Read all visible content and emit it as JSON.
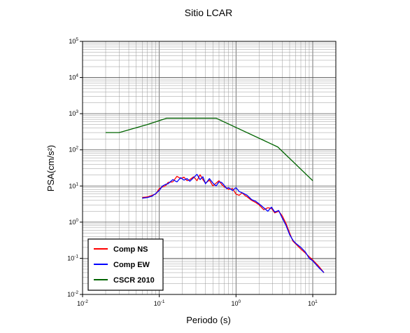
{
  "chart_data": {
    "type": "line",
    "title": "Sitio LCAR",
    "xlabel": "Periodo (s)",
    "ylabel": "PSA(cm/s²)",
    "xscale": "log",
    "yscale": "log",
    "xlim": [
      0.01,
      20
    ],
    "ylim": [
      0.01,
      100000
    ],
    "x_tick_labels": [
      {
        "base": "10",
        "exp": "-2"
      },
      {
        "base": "10",
        "exp": "-1"
      },
      {
        "base": "10",
        "exp": "0"
      },
      {
        "base": "10",
        "exp": "1"
      }
    ],
    "y_tick_labels": [
      {
        "base": "10",
        "exp": "-2"
      },
      {
        "base": "10",
        "exp": "-1"
      },
      {
        "base": "10",
        "exp": "0"
      },
      {
        "base": "10",
        "exp": "1"
      },
      {
        "base": "10",
        "exp": "2"
      },
      {
        "base": "10",
        "exp": "3"
      },
      {
        "base": "10",
        "exp": "4"
      },
      {
        "base": "10",
        "exp": "5"
      }
    ],
    "grid": true,
    "legend_position": "bottom-left",
    "series": [
      {
        "name": "Comp NS",
        "color": "#ff0000",
        "x": [
          0.06,
          0.07,
          0.08,
          0.09,
          0.1,
          0.11,
          0.12,
          0.13,
          0.15,
          0.17,
          0.19,
          0.21,
          0.23,
          0.25,
          0.28,
          0.31,
          0.34,
          0.37,
          0.4,
          0.45,
          0.5,
          0.55,
          0.6,
          0.65,
          0.7,
          0.75,
          0.8,
          0.9,
          1.0,
          1.1,
          1.2,
          1.3,
          1.4,
          1.6,
          1.8,
          2.0,
          2.3,
          2.6,
          2.9,
          3.2,
          3.6,
          4.0,
          4.5,
          5.0,
          5.5,
          6.0,
          7.0,
          8.0,
          9.0,
          10.0,
          12.0,
          14.0
        ],
        "y": [
          4.8,
          5.0,
          5.5,
          6.0,
          8.5,
          9.5,
          10.0,
          12.5,
          13.0,
          18.5,
          16.0,
          17.5,
          14.0,
          15.0,
          18.0,
          14.0,
          20.5,
          15.0,
          12.0,
          14.5,
          10.0,
          12.0,
          14.0,
          11.0,
          9.5,
          9.0,
          8.0,
          8.5,
          6.0,
          5.5,
          6.5,
          5.5,
          5.0,
          4.0,
          3.5,
          3.0,
          2.2,
          2.5,
          2.4,
          1.8,
          2.0,
          1.5,
          0.9,
          0.5,
          0.3,
          0.25,
          0.18,
          0.14,
          0.11,
          0.09,
          0.06,
          0.04
        ]
      },
      {
        "name": "Comp EW",
        "color": "#0000ff",
        "x": [
          0.06,
          0.07,
          0.08,
          0.09,
          0.1,
          0.11,
          0.12,
          0.13,
          0.15,
          0.17,
          0.19,
          0.21,
          0.23,
          0.25,
          0.28,
          0.31,
          0.34,
          0.37,
          0.4,
          0.45,
          0.5,
          0.55,
          0.6,
          0.65,
          0.7,
          0.75,
          0.8,
          0.9,
          1.0,
          1.1,
          1.2,
          1.3,
          1.4,
          1.6,
          1.8,
          2.0,
          2.3,
          2.6,
          2.9,
          3.2,
          3.6,
          4.0,
          4.5,
          5.0,
          5.5,
          6.0,
          7.0,
          8.0,
          9.0,
          10.0,
          12.0,
          14.0
        ],
        "y": [
          4.6,
          4.8,
          5.2,
          6.2,
          7.5,
          10.0,
          11.0,
          11.5,
          15.0,
          13.0,
          17.0,
          14.5,
          16.0,
          13.5,
          17.0,
          21.0,
          15.0,
          18.0,
          11.5,
          16.0,
          12.0,
          10.0,
          13.0,
          12.5,
          10.5,
          8.5,
          9.0,
          7.5,
          9.0,
          7.0,
          6.5,
          6.0,
          5.5,
          4.2,
          3.8,
          3.2,
          2.5,
          2.0,
          2.6,
          1.9,
          2.1,
          1.3,
          0.8,
          0.45,
          0.32,
          0.26,
          0.2,
          0.15,
          0.1,
          0.085,
          0.055,
          0.04
        ]
      },
      {
        "name": "CSCR 2010",
        "color": "#006400",
        "x": [
          0.02,
          0.03,
          0.07,
          0.125,
          0.55,
          3.5,
          10.0
        ],
        "y": [
          300,
          300,
          500,
          750,
          750,
          120,
          14
        ]
      }
    ]
  }
}
